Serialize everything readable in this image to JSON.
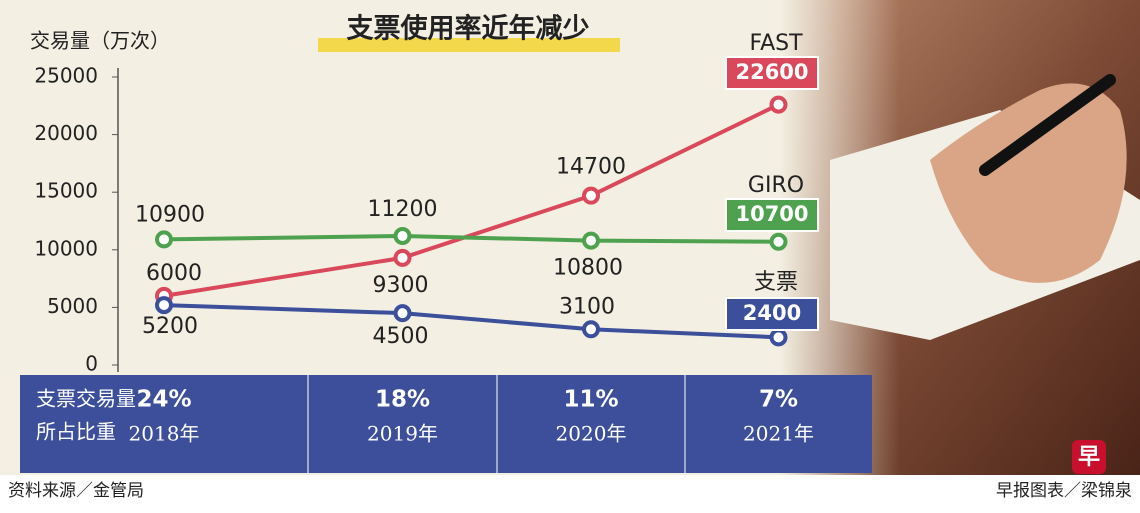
{
  "chart_data": {
    "type": "line",
    "title": "支票使用率近年减少",
    "y_axis_label": "交易量（万次）",
    "categories": [
      "2018年",
      "2019年",
      "2020年",
      "2021年"
    ],
    "ylim": [
      0,
      25000
    ],
    "yticks": [
      0,
      5000,
      10000,
      15000,
      20000,
      25000
    ],
    "series": [
      {
        "name": "FAST",
        "color": "#d9495b",
        "values": [
          6000,
          9300,
          14700,
          22600
        ]
      },
      {
        "name": "GIRO",
        "color": "#4ea24f",
        "values": [
          10900,
          11200,
          10800,
          10700
        ]
      },
      {
        "name": "支票",
        "color": "#3b4f9b",
        "values": [
          5200,
          4500,
          3100,
          2400
        ]
      }
    ],
    "share": {
      "label": [
        "支票交易量",
        "所占比重"
      ],
      "values": [
        24,
        18,
        11,
        7
      ],
      "value_labels": [
        "24%",
        "18%",
        "11%",
        "7%"
      ]
    },
    "source": "资料来源／金管局",
    "credit": "早报图表／梁锦泉"
  }
}
